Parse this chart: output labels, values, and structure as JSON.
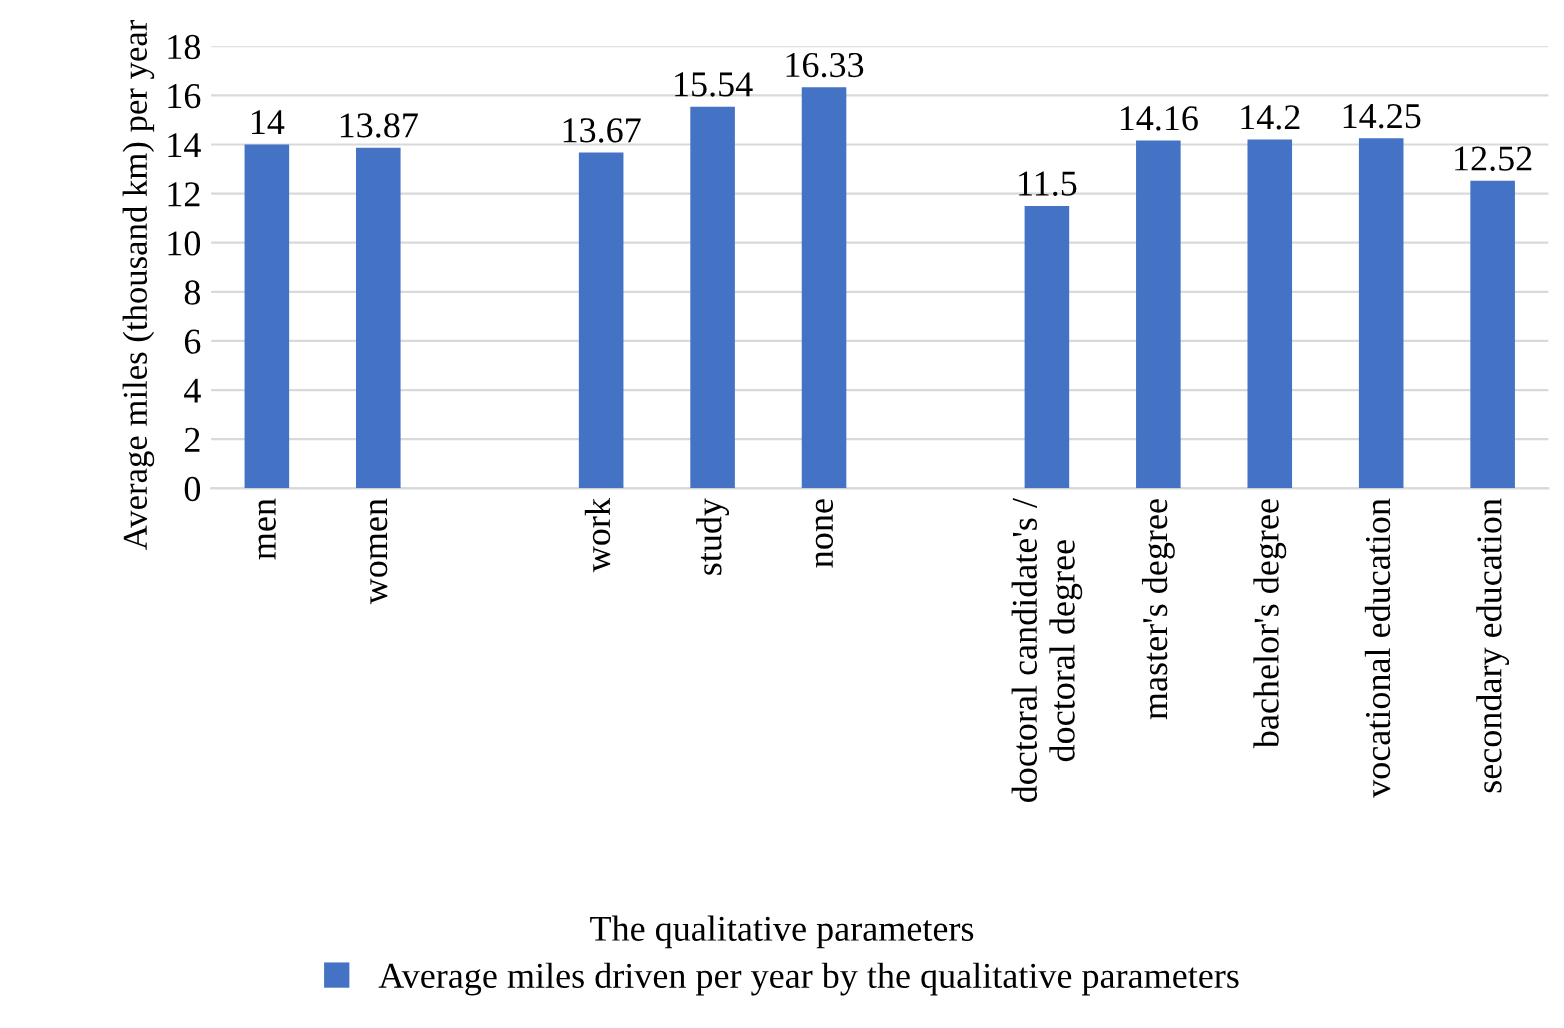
{
  "chart_data": {
    "type": "bar",
    "xlabel": "The qualitative parameters",
    "ylabel": "Average miles (thousand km) per year",
    "categories": [
      "men",
      "women",
      null,
      "work",
      "study",
      "none",
      null,
      "doctoral candidate's /\ndoctoral degree",
      "master's degree",
      "bachelor's degree",
      "vocational education",
      "secondary education"
    ],
    "series": [
      {
        "name": "Average miles driven per year by the qualitative parameters",
        "color": "#4472c4",
        "values": [
          14,
          13.87,
          null,
          13.67,
          15.54,
          16.33,
          null,
          11.5,
          14.16,
          14.2,
          14.25,
          12.52
        ]
      }
    ],
    "ylim": [
      0,
      18
    ],
    "yticks": [
      0,
      2,
      4,
      6,
      8,
      10,
      12,
      14,
      16,
      18
    ],
    "grid": "y",
    "legend": "bottom",
    "data_labels": true
  }
}
